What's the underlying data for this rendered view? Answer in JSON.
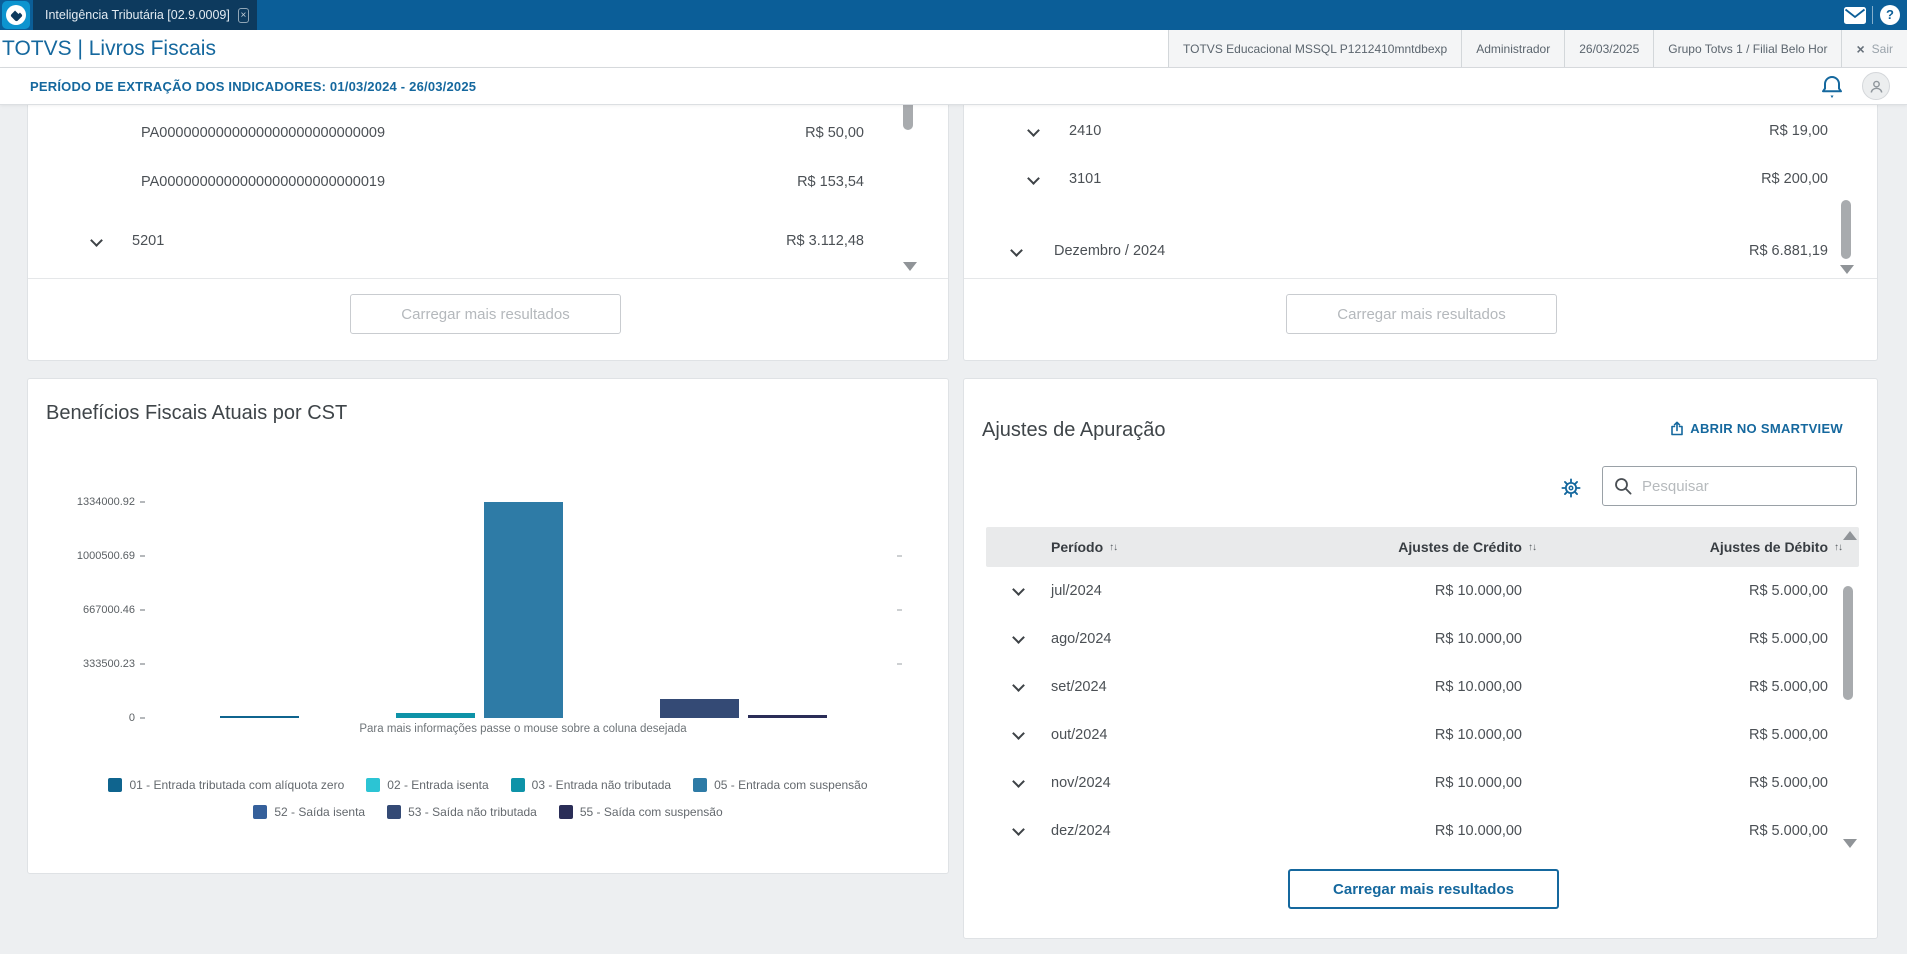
{
  "topbar": {
    "tab_title": "Inteligência Tributária [02.9.0009]"
  },
  "appbar": {
    "title": "TOTVS | Livros Fiscais",
    "segments": [
      "TOTVS Educacional MSSQL P1212410mntdbexp",
      "Administrador",
      "26/03/2025",
      "Grupo Totvs 1 / Filial Belo Hor"
    ],
    "logout_label": "Sair"
  },
  "periodbar": {
    "label": "PERÍODO DE EXTRAÇÃO DOS INDICADORES: 01/03/2024 - 26/03/2025"
  },
  "panel_top_left": {
    "rows": [
      {
        "label": "PA0000000000000000000000000009",
        "value": "R$ 50,00",
        "level": 3,
        "expandable": false
      },
      {
        "label": "PA0000000000000000000000000019",
        "value": "R$ 153,54",
        "level": 3,
        "expandable": false
      },
      {
        "label": "5201",
        "value": "R$ 3.112,48",
        "level": 2,
        "expandable": true
      }
    ],
    "load_more_label": "Carregar mais resultados"
  },
  "panel_top_right": {
    "rows": [
      {
        "label": "2410",
        "value": "R$ 19,00",
        "level": 2,
        "expandable": true
      },
      {
        "label": "3101",
        "value": "R$ 200,00",
        "level": 2,
        "expandable": true
      },
      {
        "label": "Dezembro / 2024",
        "value": "R$ 6.881,19",
        "level": 1,
        "expandable": true
      }
    ],
    "load_more_label": "Carregar mais resultados"
  },
  "chart_panel": {
    "title": "Benefícios Fiscais Atuais por CST",
    "hover_hint": "Para mais informações passe o mouse sobre a coluna desejada"
  },
  "chart_data": {
    "type": "bar",
    "title": "Benefícios Fiscais Atuais por CST",
    "categories": [
      "01 - Entrada tributada com alíquota zero",
      "02 - Entrada isenta",
      "03 - Entrada não tributada",
      "05 - Entrada com suspensão",
      "52 - Saída isenta",
      "53 - Saída não tributada",
      "55 - Saída com suspensão"
    ],
    "values": [
      12000,
      0,
      30000,
      1334000.92,
      0,
      120000,
      18000
    ],
    "colors": [
      "#0f648e",
      "#2cc4d4",
      "#0e93a8",
      "#2e7ba6",
      "#35609b",
      "#344a75",
      "#2a2d57"
    ],
    "ylim": [
      0,
      1334000.92
    ],
    "yticks": [
      0,
      333500.23,
      667000.46,
      1000500.69,
      1334000.92
    ],
    "ytick_labels": [
      "0",
      "333500.23",
      "667000.46",
      "1000500.69",
      "1334000.92"
    ],
    "xlabel": "",
    "ylabel": "",
    "grid": false,
    "legend_position": "bottom",
    "annotation": "Para mais informações passe o mouse sobre a coluna desejada"
  },
  "ajustes_panel": {
    "title": "Ajustes de Apuração",
    "smartview_label": "ABRIR NO SMARTVIEW",
    "search_placeholder": "Pesquisar",
    "table": {
      "columns": [
        "Período",
        "Ajustes de Crédito",
        "Ajustes de Débito"
      ],
      "rows": [
        [
          "jul/2024",
          "R$ 10.000,00",
          "R$ 5.000,00"
        ],
        [
          "ago/2024",
          "R$ 10.000,00",
          "R$ 5.000,00"
        ],
        [
          "set/2024",
          "R$ 10.000,00",
          "R$ 5.000,00"
        ],
        [
          "out/2024",
          "R$ 10.000,00",
          "R$ 5.000,00"
        ],
        [
          "nov/2024",
          "R$ 10.000,00",
          "R$ 5.000,00"
        ],
        [
          "dez/2024",
          "R$ 10.000,00",
          "R$ 5.000,00"
        ]
      ]
    },
    "load_more_label": "Carregar mais resultados"
  }
}
